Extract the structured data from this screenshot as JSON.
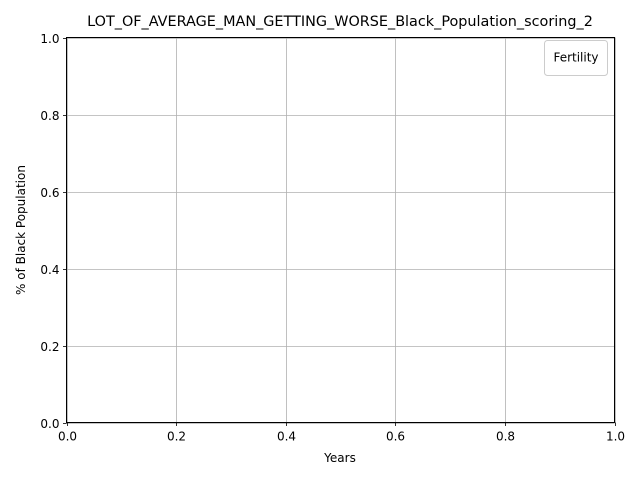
{
  "chart_data": {
    "type": "line",
    "title": "LOT_OF_AVERAGE_MAN_GETTING_WORSE_Black_Population_scoring_2",
    "xlabel": "Years",
    "ylabel": "% of Black Population",
    "xlim": [
      0.0,
      1.0
    ],
    "ylim": [
      0.0,
      1.0
    ],
    "xticks": [
      0.0,
      0.2,
      0.4,
      0.6,
      0.8,
      1.0
    ],
    "yticks": [
      0.0,
      0.2,
      0.4,
      0.6,
      0.8,
      1.0
    ],
    "xtick_labels": [
      "0.0",
      "0.2",
      "0.4",
      "0.6",
      "0.8",
      "1.0"
    ],
    "ytick_labels": [
      "0.0",
      "0.2",
      "0.4",
      "0.6",
      "0.8",
      "1.0"
    ],
    "grid": true,
    "legend": {
      "title": "Fertility",
      "placement": "top-right",
      "entries": []
    },
    "series": []
  },
  "colors": {
    "grid": "#b0b0b0",
    "axes": "#000000",
    "legend_border": "#cccccc",
    "background": "#ffffff"
  }
}
